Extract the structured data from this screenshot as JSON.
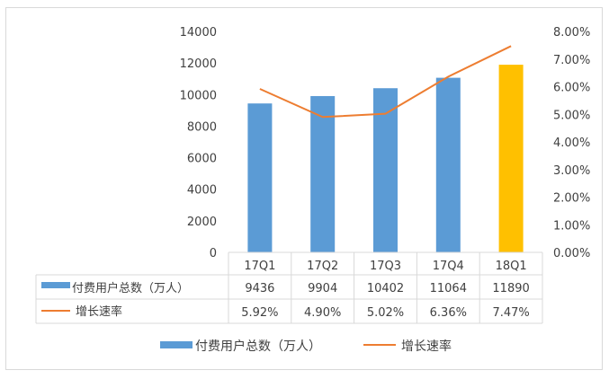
{
  "chart_data": {
    "type": "bar",
    "categories": [
      "17Q1",
      "17Q2",
      "17Q3",
      "17Q4",
      "18Q1"
    ],
    "series": [
      {
        "name": "付费用户总数（万人）",
        "type": "bar",
        "axis": "left",
        "values": [
          9436,
          9904,
          10402,
          11064,
          11890
        ],
        "color": "#5b9bd5"
      },
      {
        "name": "增长速率",
        "type": "line",
        "axis": "right",
        "values": [
          5.92,
          4.9,
          5.02,
          6.36,
          7.47
        ],
        "labels": [
          "5.92%",
          "4.90%",
          "5.02%",
          "6.36%",
          "7.47%"
        ],
        "color": "#ed7d31"
      }
    ],
    "highlight_color": "#ffc000",
    "highlight_index": 4,
    "ylim_left": [
      0,
      14000
    ],
    "yticks_left": [
      "0",
      "2000",
      "4000",
      "6000",
      "8000",
      "10000",
      "12000",
      "14000"
    ],
    "ylim_right": [
      0,
      8
    ],
    "yticks_right": [
      "0.00%",
      "1.00%",
      "2.00%",
      "3.00%",
      "4.00%",
      "5.00%",
      "6.00%",
      "7.00%",
      "8.00%"
    ],
    "grid": false,
    "data_table": true,
    "legend_position": "bottom"
  }
}
